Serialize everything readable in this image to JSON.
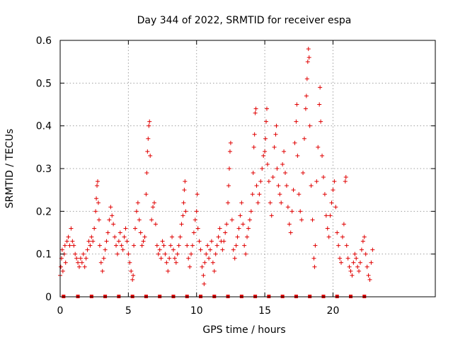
{
  "chart_data": {
    "type": "scatter",
    "title": "Day 344 of 2022, SRMTID for receiver espa",
    "xlabel": "GPS time / hours",
    "ylabel": "SRMTID / TECUs",
    "xlim": [
      0,
      27.5
    ],
    "ylim": [
      0,
      0.6
    ],
    "xticks": [
      0,
      5,
      10,
      15,
      20
    ],
    "xtick_labels": [
      "0",
      "5",
      "10",
      "15",
      "20"
    ],
    "yticks": [
      0,
      0.1,
      0.2,
      0.3,
      0.4,
      0.5,
      0.6
    ],
    "ytick_labels": [
      "0",
      "0.1",
      "0.2",
      "0.3",
      "0.4",
      "0.5",
      "0.6"
    ],
    "grid": true,
    "marker": "+",
    "color": "#e00000",
    "baseline_markers": {
      "y": 0,
      "x": [
        0.25,
        1.3,
        2.3,
        3.3,
        4.3,
        5.3,
        6.3,
        7.3,
        8.3,
        9.3,
        10.3,
        11.3,
        12.3,
        13.3,
        14.3,
        15.3,
        16.3,
        17.3,
        18.3,
        19.3,
        20.3,
        21.3,
        22.3
      ]
    },
    "series": [
      {
        "name": "SRMTID",
        "points": [
          [
            0.0,
            0.05
          ],
          [
            0.05,
            0.07
          ],
          [
            0.1,
            0.09
          ],
          [
            0.15,
            0.11
          ],
          [
            0.2,
            0.06
          ],
          [
            0.3,
            0.1
          ],
          [
            0.35,
            0.12
          ],
          [
            0.4,
            0.08
          ],
          [
            0.5,
            0.13
          ],
          [
            0.6,
            0.14
          ],
          [
            0.7,
            0.12
          ],
          [
            0.8,
            0.16
          ],
          [
            0.9,
            0.13
          ],
          [
            1.0,
            0.12
          ],
          [
            1.1,
            0.1
          ],
          [
            1.2,
            0.09
          ],
          [
            1.3,
            0.08
          ],
          [
            1.4,
            0.07
          ],
          [
            1.5,
            0.09
          ],
          [
            1.6,
            0.08
          ],
          [
            1.7,
            0.1
          ],
          [
            1.8,
            0.07
          ],
          [
            1.9,
            0.09
          ],
          [
            2.0,
            0.11
          ],
          [
            2.1,
            0.13
          ],
          [
            2.2,
            0.12
          ],
          [
            2.3,
            0.14
          ],
          [
            2.4,
            0.13
          ],
          [
            2.5,
            0.16
          ],
          [
            2.6,
            0.2
          ],
          [
            2.65,
            0.23
          ],
          [
            2.7,
            0.26
          ],
          [
            2.75,
            0.27
          ],
          [
            2.8,
            0.22
          ],
          [
            2.85,
            0.18
          ],
          [
            2.9,
            0.12
          ],
          [
            3.0,
            0.08
          ],
          [
            3.1,
            0.06
          ],
          [
            3.2,
            0.09
          ],
          [
            3.3,
            0.11
          ],
          [
            3.4,
            0.13
          ],
          [
            3.5,
            0.15
          ],
          [
            3.6,
            0.18
          ],
          [
            3.7,
            0.21
          ],
          [
            3.8,
            0.19
          ],
          [
            3.9,
            0.17
          ],
          [
            4.0,
            0.14
          ],
          [
            4.1,
            0.12
          ],
          [
            4.2,
            0.1
          ],
          [
            4.3,
            0.13
          ],
          [
            4.4,
            0.15
          ],
          [
            4.5,
            0.12
          ],
          [
            4.6,
            0.11
          ],
          [
            4.7,
            0.14
          ],
          [
            4.8,
            0.16
          ],
          [
            4.9,
            0.13
          ],
          [
            5.0,
            0.1
          ],
          [
            5.1,
            0.08
          ],
          [
            5.2,
            0.06
          ],
          [
            5.3,
            0.04
          ],
          [
            5.35,
            0.05
          ],
          [
            5.4,
            0.12
          ],
          [
            5.5,
            0.16
          ],
          [
            5.6,
            0.2
          ],
          [
            5.7,
            0.22
          ],
          [
            5.8,
            0.18
          ],
          [
            5.9,
            0.15
          ],
          [
            6.0,
            0.12
          ],
          [
            6.1,
            0.13
          ],
          [
            6.2,
            0.14
          ],
          [
            6.3,
            0.24
          ],
          [
            6.35,
            0.29
          ],
          [
            6.4,
            0.34
          ],
          [
            6.45,
            0.37
          ],
          [
            6.5,
            0.4
          ],
          [
            6.55,
            0.41
          ],
          [
            6.6,
            0.33
          ],
          [
            6.7,
            0.18
          ],
          [
            6.8,
            0.21
          ],
          [
            6.9,
            0.22
          ],
          [
            7.0,
            0.17
          ],
          [
            7.1,
            0.12
          ],
          [
            7.2,
            0.1
          ],
          [
            7.3,
            0.11
          ],
          [
            7.4,
            0.09
          ],
          [
            7.5,
            0.13
          ],
          [
            7.6,
            0.12
          ],
          [
            7.7,
            0.1
          ],
          [
            7.8,
            0.08
          ],
          [
            7.9,
            0.06
          ],
          [
            8.0,
            0.09
          ],
          [
            8.1,
            0.12
          ],
          [
            8.2,
            0.14
          ],
          [
            8.3,
            0.11
          ],
          [
            8.4,
            0.09
          ],
          [
            8.5,
            0.08
          ],
          [
            8.6,
            0.1
          ],
          [
            8.7,
            0.12
          ],
          [
            8.8,
            0.14
          ],
          [
            8.9,
            0.17
          ],
          [
            9.0,
            0.19
          ],
          [
            9.05,
            0.22
          ],
          [
            9.1,
            0.25
          ],
          [
            9.15,
            0.27
          ],
          [
            9.2,
            0.2
          ],
          [
            9.3,
            0.12
          ],
          [
            9.4,
            0.09
          ],
          [
            9.5,
            0.07
          ],
          [
            9.6,
            0.1
          ],
          [
            9.7,
            0.12
          ],
          [
            9.8,
            0.15
          ],
          [
            9.9,
            0.18
          ],
          [
            10.0,
            0.2
          ],
          [
            10.05,
            0.24
          ],
          [
            10.1,
            0.16
          ],
          [
            10.2,
            0.13
          ],
          [
            10.3,
            0.11
          ],
          [
            10.4,
            0.07
          ],
          [
            10.5,
            0.05
          ],
          [
            10.55,
            0.03
          ],
          [
            10.6,
            0.08
          ],
          [
            10.7,
            0.1
          ],
          [
            10.8,
            0.12
          ],
          [
            10.9,
            0.09
          ],
          [
            11.0,
            0.11
          ],
          [
            11.1,
            0.13
          ],
          [
            11.2,
            0.08
          ],
          [
            11.3,
            0.06
          ],
          [
            11.4,
            0.1
          ],
          [
            11.5,
            0.12
          ],
          [
            11.6,
            0.14
          ],
          [
            11.7,
            0.16
          ],
          [
            11.8,
            0.13
          ],
          [
            11.9,
            0.11
          ],
          [
            12.0,
            0.13
          ],
          [
            12.1,
            0.15
          ],
          [
            12.2,
            0.17
          ],
          [
            12.3,
            0.22
          ],
          [
            12.35,
            0.26
          ],
          [
            12.4,
            0.3
          ],
          [
            12.45,
            0.34
          ],
          [
            12.5,
            0.36
          ],
          [
            12.6,
            0.18
          ],
          [
            12.7,
            0.11
          ],
          [
            12.8,
            0.09
          ],
          [
            12.9,
            0.12
          ],
          [
            13.0,
            0.14
          ],
          [
            13.1,
            0.16
          ],
          [
            13.2,
            0.19
          ],
          [
            13.3,
            0.22
          ],
          [
            13.4,
            0.17
          ],
          [
            13.5,
            0.12
          ],
          [
            13.6,
            0.1
          ],
          [
            13.7,
            0.14
          ],
          [
            13.8,
            0.16
          ],
          [
            13.9,
            0.18
          ],
          [
            14.0,
            0.2
          ],
          [
            14.1,
            0.24
          ],
          [
            14.15,
            0.29
          ],
          [
            14.2,
            0.35
          ],
          [
            14.25,
            0.38
          ],
          [
            14.3,
            0.43
          ],
          [
            14.35,
            0.44
          ],
          [
            14.4,
            0.26
          ],
          [
            14.5,
            0.22
          ],
          [
            14.6,
            0.24
          ],
          [
            14.7,
            0.27
          ],
          [
            14.8,
            0.3
          ],
          [
            14.9,
            0.33
          ],
          [
            15.0,
            0.34
          ],
          [
            15.05,
            0.37
          ],
          [
            15.1,
            0.41
          ],
          [
            15.15,
            0.44
          ],
          [
            15.2,
            0.31
          ],
          [
            15.3,
            0.27
          ],
          [
            15.4,
            0.22
          ],
          [
            15.5,
            0.19
          ],
          [
            15.6,
            0.28
          ],
          [
            15.7,
            0.35
          ],
          [
            15.8,
            0.38
          ],
          [
            15.85,
            0.4
          ],
          [
            15.9,
            0.3
          ],
          [
            16.0,
            0.26
          ],
          [
            16.1,
            0.24
          ],
          [
            16.2,
            0.22
          ],
          [
            16.3,
            0.31
          ],
          [
            16.4,
            0.34
          ],
          [
            16.5,
            0.29
          ],
          [
            16.6,
            0.26
          ],
          [
            16.7,
            0.21
          ],
          [
            16.8,
            0.17
          ],
          [
            16.9,
            0.15
          ],
          [
            17.0,
            0.2
          ],
          [
            17.1,
            0.25
          ],
          [
            17.2,
            0.36
          ],
          [
            17.3,
            0.41
          ],
          [
            17.35,
            0.45
          ],
          [
            17.4,
            0.33
          ],
          [
            17.5,
            0.24
          ],
          [
            17.6,
            0.2
          ],
          [
            17.7,
            0.18
          ],
          [
            17.8,
            0.29
          ],
          [
            17.9,
            0.37
          ],
          [
            18.0,
            0.44
          ],
          [
            18.05,
            0.47
          ],
          [
            18.1,
            0.51
          ],
          [
            18.15,
            0.55
          ],
          [
            18.2,
            0.58
          ],
          [
            18.25,
            0.56
          ],
          [
            18.3,
            0.4
          ],
          [
            18.4,
            0.26
          ],
          [
            18.5,
            0.18
          ],
          [
            18.6,
            0.09
          ],
          [
            18.65,
            0.07
          ],
          [
            18.7,
            0.12
          ],
          [
            18.8,
            0.27
          ],
          [
            18.9,
            0.35
          ],
          [
            19.0,
            0.45
          ],
          [
            19.05,
            0.49
          ],
          [
            19.1,
            0.41
          ],
          [
            19.2,
            0.33
          ],
          [
            19.3,
            0.28
          ],
          [
            19.4,
            0.24
          ],
          [
            19.5,
            0.19
          ],
          [
            19.6,
            0.16
          ],
          [
            19.7,
            0.14
          ],
          [
            19.8,
            0.19
          ],
          [
            19.9,
            0.22
          ],
          [
            20.0,
            0.25
          ],
          [
            20.1,
            0.27
          ],
          [
            20.2,
            0.21
          ],
          [
            20.3,
            0.15
          ],
          [
            20.4,
            0.12
          ],
          [
            20.5,
            0.09
          ],
          [
            20.6,
            0.08
          ],
          [
            20.7,
            0.14
          ],
          [
            20.8,
            0.17
          ],
          [
            20.9,
            0.27
          ],
          [
            20.95,
            0.28
          ],
          [
            21.0,
            0.12
          ],
          [
            21.1,
            0.09
          ],
          [
            21.2,
            0.07
          ],
          [
            21.3,
            0.06
          ],
          [
            21.4,
            0.05
          ],
          [
            21.5,
            0.08
          ],
          [
            21.6,
            0.1
          ],
          [
            21.7,
            0.09
          ],
          [
            21.8,
            0.07
          ],
          [
            21.9,
            0.06
          ],
          [
            22.0,
            0.08
          ],
          [
            22.1,
            0.11
          ],
          [
            22.2,
            0.13
          ],
          [
            22.3,
            0.14
          ],
          [
            22.4,
            0.1
          ],
          [
            22.5,
            0.07
          ],
          [
            22.6,
            0.05
          ],
          [
            22.7,
            0.04
          ],
          [
            22.8,
            0.08
          ],
          [
            22.9,
            0.11
          ]
        ]
      }
    ]
  }
}
